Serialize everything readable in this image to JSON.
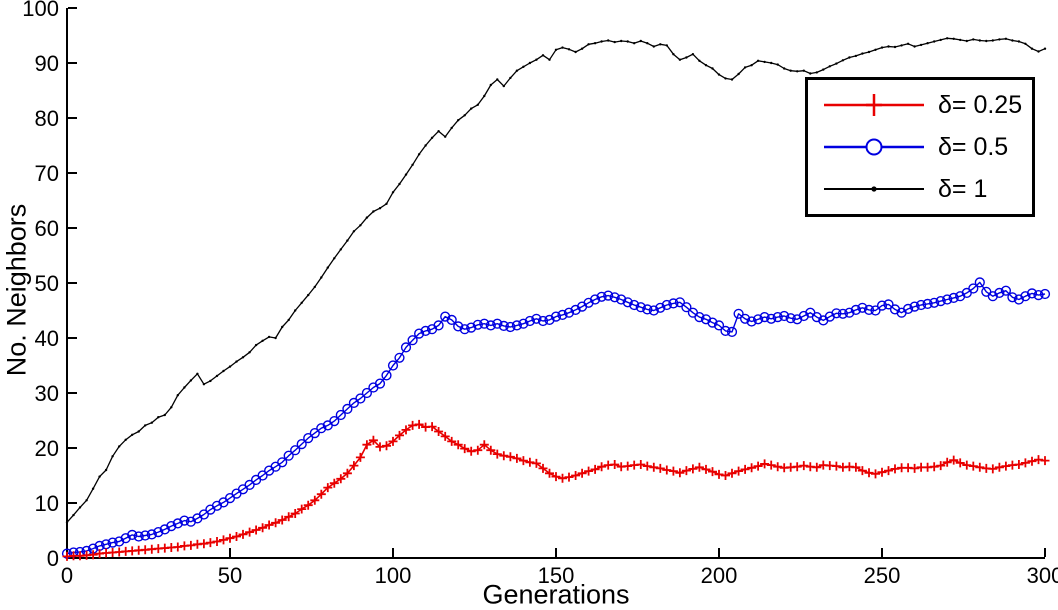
{
  "chart_data": {
    "type": "line",
    "title": "",
    "xlabel": "Generations",
    "ylabel": "No. Neighbors",
    "xlim": [
      0,
      300
    ],
    "ylim": [
      0,
      100
    ],
    "xticks": [
      0,
      50,
      100,
      150,
      200,
      250,
      300
    ],
    "yticks": [
      0,
      10,
      20,
      30,
      40,
      50,
      60,
      70,
      80,
      90,
      100
    ],
    "grid": false,
    "legend_position": "upper-right-inside",
    "x": [
      0,
      2,
      4,
      6,
      8,
      10,
      12,
      14,
      16,
      18,
      20,
      22,
      24,
      26,
      28,
      30,
      32,
      34,
      36,
      38,
      40,
      42,
      44,
      46,
      48,
      50,
      52,
      54,
      56,
      58,
      60,
      62,
      64,
      66,
      68,
      70,
      72,
      74,
      76,
      78,
      80,
      82,
      84,
      86,
      88,
      90,
      92,
      94,
      96,
      98,
      100,
      102,
      104,
      106,
      108,
      110,
      112,
      114,
      116,
      118,
      120,
      122,
      124,
      126,
      128,
      130,
      132,
      134,
      136,
      138,
      140,
      142,
      144,
      146,
      148,
      150,
      152,
      154,
      156,
      158,
      160,
      162,
      164,
      166,
      168,
      170,
      172,
      174,
      176,
      178,
      180,
      182,
      184,
      186,
      188,
      190,
      192,
      194,
      196,
      198,
      200,
      202,
      204,
      206,
      208,
      210,
      212,
      214,
      216,
      218,
      220,
      222,
      224,
      226,
      228,
      230,
      232,
      234,
      236,
      238,
      240,
      242,
      244,
      246,
      248,
      250,
      252,
      254,
      256,
      258,
      260,
      262,
      264,
      266,
      268,
      270,
      272,
      274,
      276,
      278,
      280,
      282,
      284,
      286,
      288,
      290,
      292,
      294,
      296,
      298,
      300
    ],
    "series": [
      {
        "name": "δ= 0.25",
        "color": "#e80000",
        "marker": "plus",
        "values": [
          0.3,
          0.4,
          0.4,
          0.5,
          0.6,
          0.8,
          0.9,
          1.0,
          1.1,
          1.2,
          1.3,
          1.4,
          1.5,
          1.6,
          1.7,
          1.8,
          1.9,
          2.0,
          2.2,
          2.3,
          2.5,
          2.6,
          2.8,
          3.0,
          3.3,
          3.6,
          3.9,
          4.3,
          4.7,
          5.1,
          5.5,
          6.0,
          6.4,
          6.9,
          7.5,
          8.1,
          8.9,
          9.6,
          10.5,
          11.6,
          12.8,
          13.6,
          14.4,
          15.4,
          16.8,
          18.3,
          20.6,
          21.4,
          20.2,
          20.4,
          21.2,
          22.3,
          23.3,
          24.1,
          24.3,
          23.8,
          23.9,
          23.0,
          22.1,
          21.2,
          20.6,
          19.9,
          19.4,
          19.6,
          20.6,
          19.6,
          18.9,
          18.6,
          18.4,
          18.1,
          17.7,
          17.4,
          17.2,
          16.3,
          15.4,
          14.8,
          14.5,
          14.7,
          15.0,
          15.4,
          15.8,
          16.1,
          16.6,
          16.9,
          17.0,
          16.6,
          16.7,
          16.9,
          17.0,
          16.7,
          16.5,
          16.3,
          16.0,
          15.8,
          15.5,
          15.9,
          16.2,
          16.5,
          16.1,
          15.7,
          15.2,
          15.0,
          15.4,
          15.8,
          16.1,
          16.4,
          16.7,
          17.1,
          16.9,
          16.6,
          16.4,
          16.5,
          16.6,
          16.8,
          16.6,
          16.5,
          16.9,
          16.8,
          16.7,
          16.5,
          16.6,
          16.5,
          15.9,
          15.5,
          15.3,
          15.6,
          15.9,
          16.2,
          16.4,
          16.4,
          16.3,
          16.5,
          16.5,
          16.6,
          16.8,
          17.4,
          17.8,
          17.3,
          16.9,
          16.7,
          16.5,
          16.3,
          16.2,
          16.5,
          16.7,
          16.9,
          17.0,
          17.3,
          17.6,
          17.9,
          17.7
        ]
      },
      {
        "name": "δ= 0.5",
        "color": "#0000e0",
        "marker": "circle",
        "values": [
          0.8,
          1.0,
          1.1,
          1.3,
          1.7,
          2.2,
          2.5,
          2.8,
          3.0,
          3.6,
          4.2,
          3.9,
          4.1,
          4.3,
          4.7,
          5.2,
          5.8,
          6.3,
          6.8,
          6.6,
          7.2,
          7.9,
          8.8,
          9.5,
          10.1,
          10.9,
          11.7,
          12.5,
          13.3,
          14.2,
          15.0,
          15.9,
          16.6,
          17.4,
          18.6,
          19.6,
          20.7,
          21.8,
          22.7,
          23.6,
          24.1,
          24.9,
          26.0,
          27.1,
          28.2,
          29.0,
          30.0,
          31.0,
          31.7,
          33.2,
          35.0,
          36.4,
          38.3,
          39.6,
          40.8,
          41.3,
          41.6,
          42.3,
          43.9,
          43.3,
          42.1,
          41.6,
          41.9,
          42.4,
          42.6,
          42.3,
          42.6,
          42.2,
          42.0,
          42.3,
          42.6,
          43.1,
          43.5,
          43.1,
          43.3,
          43.9,
          44.2,
          44.6,
          45.1,
          45.7,
          46.4,
          47.0,
          47.5,
          47.7,
          47.4,
          47.0,
          46.5,
          46.0,
          45.6,
          45.2,
          45.0,
          45.5,
          46.0,
          46.3,
          46.5,
          45.6,
          44.6,
          43.8,
          43.4,
          42.8,
          42.3,
          41.3,
          41.1,
          44.4,
          43.5,
          43.0,
          43.4,
          43.8,
          43.5,
          43.8,
          44.0,
          43.6,
          43.4,
          44.0,
          44.6,
          43.8,
          43.2,
          43.9,
          44.5,
          44.4,
          44.6,
          45.1,
          45.5,
          45.1,
          45.0,
          45.9,
          46.1,
          45.2,
          44.6,
          45.3,
          45.7,
          46.0,
          46.2,
          46.4,
          46.7,
          47.0,
          47.3,
          47.6,
          48.2,
          49.0,
          50.1,
          48.4,
          47.6,
          48.2,
          48.6,
          47.4,
          47.0,
          47.6,
          48.1,
          47.8,
          48.0
        ]
      },
      {
        "name": "δ= 1",
        "color": "#000000",
        "marker": "dot",
        "values": [
          6.5,
          7.8,
          9.2,
          10.5,
          12.6,
          14.8,
          16.0,
          18.5,
          20.3,
          21.5,
          22.4,
          23.0,
          24.1,
          24.6,
          25.6,
          26.0,
          27.4,
          29.6,
          31.0,
          32.3,
          33.5,
          31.6,
          32.2,
          33.1,
          34.0,
          34.8,
          35.7,
          36.5,
          37.4,
          38.7,
          39.5,
          40.2,
          40.0,
          42.0,
          43.3,
          45.0,
          46.4,
          47.8,
          49.3,
          51.0,
          52.8,
          54.5,
          56.1,
          57.7,
          59.4,
          60.5,
          61.9,
          63.0,
          63.6,
          64.4,
          66.5,
          68.0,
          69.7,
          71.5,
          73.4,
          75.0,
          76.4,
          77.6,
          76.6,
          78.2,
          79.6,
          80.5,
          81.7,
          82.4,
          84.0,
          86.0,
          87.0,
          85.8,
          87.3,
          88.6,
          89.3,
          90.0,
          90.6,
          91.4,
          90.6,
          92.4,
          92.8,
          92.5,
          92.0,
          92.6,
          93.4,
          93.6,
          93.9,
          94.1,
          93.8,
          94.0,
          93.9,
          93.6,
          94.0,
          93.6,
          93.0,
          93.4,
          93.2,
          91.6,
          90.6,
          91.0,
          91.6,
          90.4,
          89.6,
          89.0,
          87.9,
          87.2,
          87.0,
          88.0,
          89.2,
          89.6,
          90.4,
          90.2,
          90.0,
          89.7,
          89.0,
          88.6,
          88.5,
          88.6,
          88.1,
          88.3,
          88.8,
          89.4,
          89.9,
          90.5,
          91.0,
          91.3,
          91.7,
          92.0,
          92.4,
          92.8,
          93.0,
          92.9,
          93.2,
          93.5,
          93.0,
          93.3,
          93.6,
          93.9,
          94.2,
          94.5,
          94.4,
          94.2,
          94.0,
          94.3,
          94.1,
          94.0,
          94.1,
          94.3,
          94.4,
          94.1,
          93.9,
          93.5,
          92.6,
          92.1,
          92.6
        ]
      }
    ]
  }
}
